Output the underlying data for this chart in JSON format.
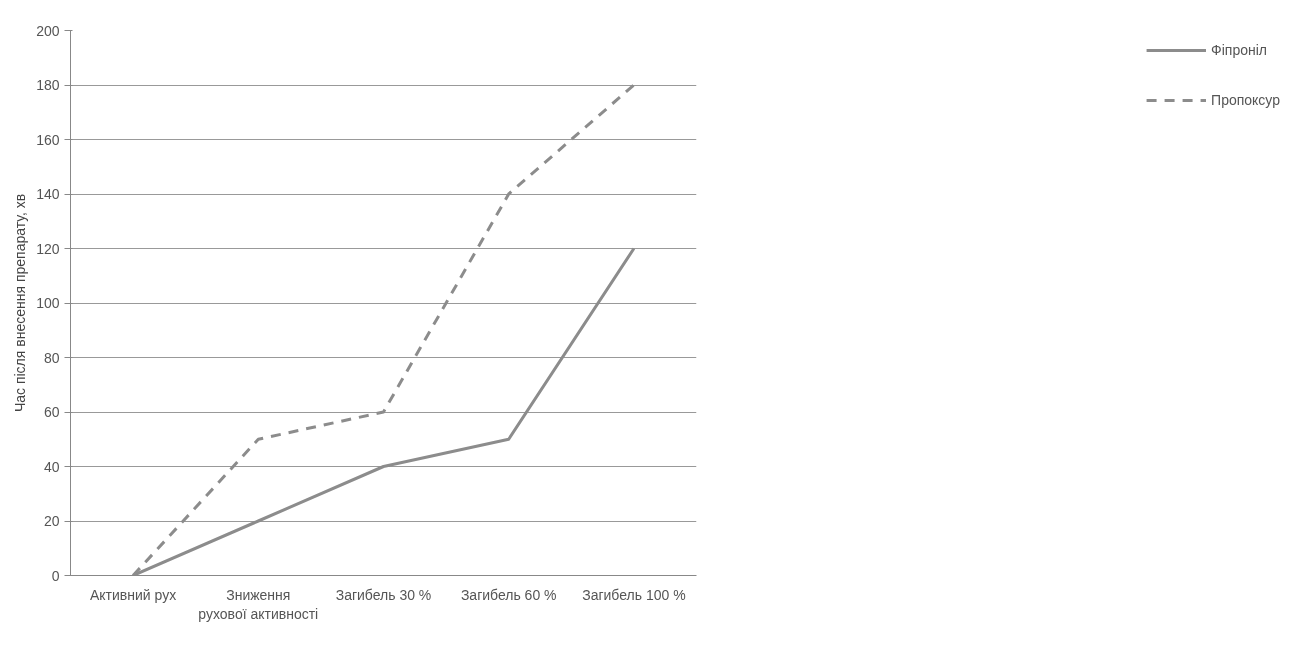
{
  "chart_data": {
    "type": "line",
    "ylabel": "Час після внесення препарату, хв",
    "categories": [
      "Активний рух",
      "Зниження рухової активності",
      "Загибель 30 %",
      "Загибель 60 %",
      "Загибель 100 %"
    ],
    "series": [
      {
        "name": "Фіпроніл",
        "color": "#8c8c8c",
        "line_style": "solid",
        "values": [
          0,
          20,
          40,
          50,
          120
        ]
      },
      {
        "name": "Пропоксур",
        "color": "#8c8c8c",
        "line_style": "dashed",
        "values": [
          0,
          50,
          60,
          140,
          180
        ]
      }
    ],
    "ylim": [
      0,
      200
    ],
    "yticks": [
      0,
      20,
      40,
      60,
      80,
      100,
      120,
      140,
      160,
      180,
      200
    ],
    "grid": "y",
    "legend": "right",
    "marker": "none"
  }
}
